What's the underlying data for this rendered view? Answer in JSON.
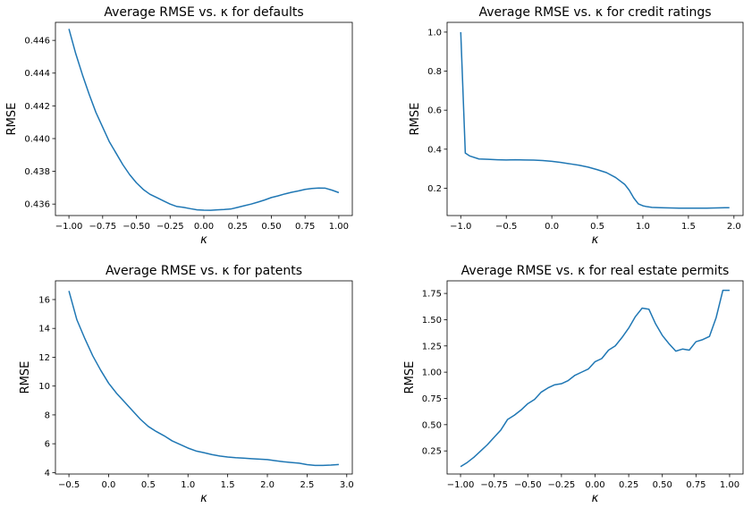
{
  "chart_data": [
    {
      "type": "line",
      "title": "Average RMSE vs. κ for defaults",
      "xlabel": "κ",
      "ylabel": "RMSE",
      "xlim": [
        -1.1,
        1.1
      ],
      "ylim": [
        0.4353,
        0.4471
      ],
      "xticks": [
        -1.0,
        -0.75,
        -0.5,
        -0.25,
        0.0,
        0.25,
        0.5,
        0.75,
        1.0
      ],
      "xtick_labels": [
        "−1.00",
        "−0.75",
        "−0.50",
        "−0.25",
        "0.00",
        "0.25",
        "0.50",
        "0.75",
        "1.00"
      ],
      "yticks": [
        0.436,
        0.438,
        0.44,
        0.442,
        0.444,
        0.446
      ],
      "ytick_labels": [
        "0.436",
        "0.438",
        "0.440",
        "0.442",
        "0.444",
        "0.446"
      ],
      "color": "#1f77b4",
      "x": [
        -1.0,
        -0.95,
        -0.9,
        -0.85,
        -0.8,
        -0.75,
        -0.7,
        -0.65,
        -0.6,
        -0.55,
        -0.5,
        -0.45,
        -0.4,
        -0.35,
        -0.3,
        -0.25,
        -0.2,
        -0.15,
        -0.1,
        -0.05,
        0.0,
        0.05,
        0.1,
        0.15,
        0.2,
        0.25,
        0.3,
        0.35,
        0.4,
        0.45,
        0.5,
        0.55,
        0.6,
        0.65,
        0.7,
        0.75,
        0.8,
        0.85,
        0.9,
        0.95,
        1.0
      ],
      "y": [
        0.4467,
        0.4452,
        0.4439,
        0.4427,
        0.4416,
        0.4407,
        0.4398,
        0.4391,
        0.4384,
        0.4378,
        0.4373,
        0.4369,
        0.4366,
        0.4364,
        0.4362,
        0.436,
        0.43585,
        0.4358,
        0.43572,
        0.43565,
        0.43563,
        0.43562,
        0.43565,
        0.43567,
        0.4357,
        0.4358,
        0.4359,
        0.436,
        0.43612,
        0.43625,
        0.4364,
        0.4365,
        0.43662,
        0.43672,
        0.4368,
        0.4369,
        0.43695,
        0.43698,
        0.43697,
        0.43685,
        0.4367
      ]
    },
    {
      "type": "line",
      "title": "Average RMSE vs. κ for credit ratings",
      "xlabel": "κ",
      "ylabel": "RMSE",
      "xlim": [
        -1.15,
        2.1
      ],
      "ylim": [
        0.06,
        1.05
      ],
      "xticks": [
        -1.0,
        -0.5,
        0.0,
        0.5,
        1.0,
        1.5,
        2.0
      ],
      "xtick_labels": [
        "−1.0",
        "−0.5",
        "0.0",
        "0.5",
        "1.0",
        "1.5",
        "2.0"
      ],
      "yticks": [
        0.2,
        0.4,
        0.6,
        0.8,
        1.0
      ],
      "ytick_labels": [
        "0.2",
        "0.4",
        "0.6",
        "0.8",
        "1.0"
      ],
      "color": "#1f77b4",
      "x": [
        -1.0,
        -0.95,
        -0.9,
        -0.8,
        -0.7,
        -0.6,
        -0.5,
        -0.4,
        -0.3,
        -0.2,
        -0.1,
        0.0,
        0.1,
        0.2,
        0.3,
        0.4,
        0.5,
        0.6,
        0.7,
        0.8,
        0.85,
        0.9,
        0.95,
        1.0,
        1.05,
        1.1,
        1.2,
        1.3,
        1.4,
        1.5,
        1.6,
        1.7,
        1.8,
        1.9,
        1.95
      ],
      "y": [
        1.0,
        0.38,
        0.365,
        0.35,
        0.348,
        0.346,
        0.345,
        0.346,
        0.345,
        0.344,
        0.342,
        0.338,
        0.332,
        0.325,
        0.318,
        0.308,
        0.295,
        0.28,
        0.255,
        0.22,
        0.19,
        0.15,
        0.12,
        0.11,
        0.105,
        0.102,
        0.1,
        0.099,
        0.098,
        0.098,
        0.098,
        0.098,
        0.099,
        0.1,
        0.1
      ]
    },
    {
      "type": "line",
      "title": "Average RMSE vs. κ for patents",
      "xlabel": "κ",
      "ylabel": "RMSE",
      "xlim": [
        -0.67,
        3.07
      ],
      "ylim": [
        3.9,
        17.3
      ],
      "xticks": [
        -0.5,
        0.0,
        0.5,
        1.0,
        1.5,
        2.0,
        2.5,
        3.0
      ],
      "xtick_labels": [
        "−0.5",
        "0.0",
        "0.5",
        "1.0",
        "1.5",
        "2.0",
        "2.5",
        "3.0"
      ],
      "yticks": [
        4,
        6,
        8,
        10,
        12,
        14,
        16
      ],
      "ytick_labels": [
        "4",
        "6",
        "8",
        "10",
        "12",
        "14",
        "16"
      ],
      "color": "#1f77b4",
      "x": [
        -0.5,
        -0.4,
        -0.3,
        -0.2,
        -0.1,
        0.0,
        0.1,
        0.2,
        0.3,
        0.4,
        0.5,
        0.6,
        0.7,
        0.8,
        0.9,
        1.0,
        1.1,
        1.2,
        1.3,
        1.4,
        1.5,
        1.6,
        1.7,
        1.8,
        1.9,
        2.0,
        2.1,
        2.2,
        2.3,
        2.4,
        2.5,
        2.6,
        2.7,
        2.8,
        2.9
      ],
      "y": [
        16.6,
        14.6,
        13.3,
        12.1,
        11.1,
        10.2,
        9.5,
        8.9,
        8.3,
        7.7,
        7.2,
        6.85,
        6.55,
        6.2,
        5.95,
        5.7,
        5.5,
        5.38,
        5.25,
        5.15,
        5.08,
        5.03,
        5.0,
        4.96,
        4.93,
        4.9,
        4.82,
        4.75,
        4.7,
        4.65,
        4.55,
        4.5,
        4.5,
        4.52,
        4.56
      ]
    },
    {
      "type": "line",
      "title": "Average RMSE vs. κ for real estate permits",
      "xlabel": "κ",
      "ylabel": "RMSE",
      "xlim": [
        -1.1,
        1.1
      ],
      "ylim": [
        0.03,
        1.87
      ],
      "xticks": [
        -1.0,
        -0.75,
        -0.5,
        -0.25,
        0.0,
        0.25,
        0.5,
        0.75,
        1.0
      ],
      "xtick_labels": [
        "−1.00",
        "−0.75",
        "−0.50",
        "−0.25",
        "0.00",
        "0.25",
        "0.50",
        "0.75",
        "1.00"
      ],
      "yticks": [
        0.25,
        0.5,
        0.75,
        1.0,
        1.25,
        1.5,
        1.75
      ],
      "ytick_labels": [
        "0.25",
        "0.50",
        "0.75",
        "1.00",
        "1.25",
        "1.50",
        "1.75"
      ],
      "color": "#1f77b4",
      "x": [
        -1.0,
        -0.95,
        -0.9,
        -0.85,
        -0.8,
        -0.75,
        -0.7,
        -0.65,
        -0.6,
        -0.55,
        -0.5,
        -0.45,
        -0.4,
        -0.35,
        -0.3,
        -0.25,
        -0.2,
        -0.15,
        -0.1,
        -0.05,
        0.0,
        0.05,
        0.1,
        0.15,
        0.2,
        0.25,
        0.3,
        0.35,
        0.4,
        0.45,
        0.5,
        0.55,
        0.6,
        0.65,
        0.7,
        0.75,
        0.8,
        0.85,
        0.9,
        0.95,
        1.0
      ],
      "y": [
        0.1,
        0.14,
        0.19,
        0.25,
        0.31,
        0.38,
        0.45,
        0.55,
        0.59,
        0.64,
        0.7,
        0.74,
        0.81,
        0.85,
        0.88,
        0.89,
        0.92,
        0.97,
        1.0,
        1.03,
        1.1,
        1.13,
        1.21,
        1.25,
        1.33,
        1.42,
        1.53,
        1.61,
        1.6,
        1.46,
        1.35,
        1.27,
        1.2,
        1.22,
        1.21,
        1.29,
        1.31,
        1.34,
        1.52,
        1.78,
        1.78
      ]
    }
  ]
}
